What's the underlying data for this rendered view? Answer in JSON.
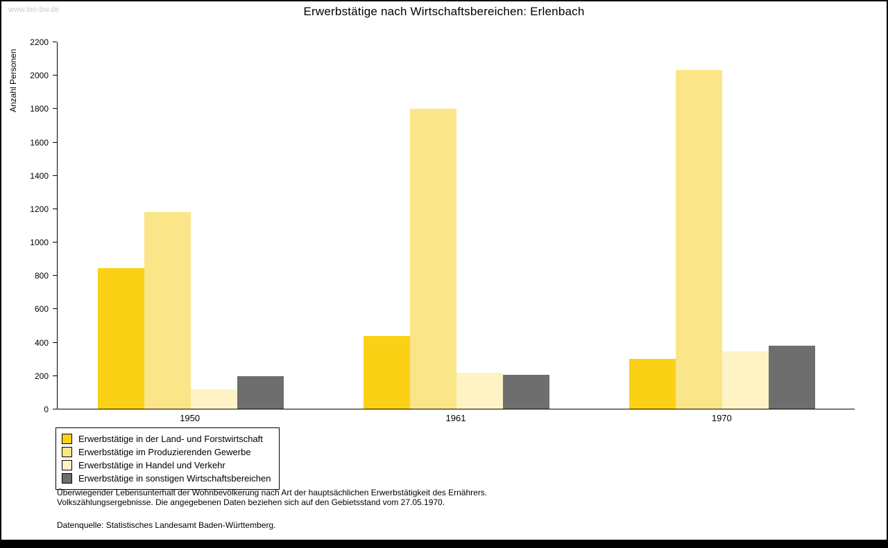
{
  "watermark": "www.leo-bw.de",
  "chart_data": {
    "type": "bar",
    "title": "Erwerbstätige nach Wirtschaftsbereichen: Erlenbach",
    "xlabel": "",
    "ylabel": "Anzahl Personen",
    "ylim": [
      0,
      2200
    ],
    "ytick_step": 200,
    "grid": false,
    "legend_position": "bottom-left",
    "categories": [
      "1950",
      "1961",
      "1970"
    ],
    "series": [
      {
        "name": "Erwerbstätige in der Land- und Forstwirtschaft",
        "color": "#FBD116",
        "values": [
          845,
          435,
          300
        ]
      },
      {
        "name": "Erwerbstätige im Produzierenden Gewerbe",
        "color": "#FAE588",
        "values": [
          1180,
          1800,
          2035
        ]
      },
      {
        "name": "Erwerbstätige in Handel und Verkehr",
        "color": "#FDF3C4",
        "values": [
          115,
          215,
          345
        ]
      },
      {
        "name": "Erwerbstätige in sonstigen Wirtschaftsbereichen",
        "color": "#6E6E6E",
        "values": [
          195,
          205,
          380
        ]
      }
    ]
  },
  "footnotes": {
    "line1": "Überwiegender Lebensunterhalt der Wohnbevölkerung nach Art der hauptsächlichen Erwerbstätigkeit des Ernährers.",
    "line2": "Volkszählungsergebnisse. Die angegebenen Daten beziehen sich auf den Gebietsstand vom 27.05.1970.",
    "source": "Datenquelle: Statistisches Landesamt Baden-Württemberg."
  }
}
